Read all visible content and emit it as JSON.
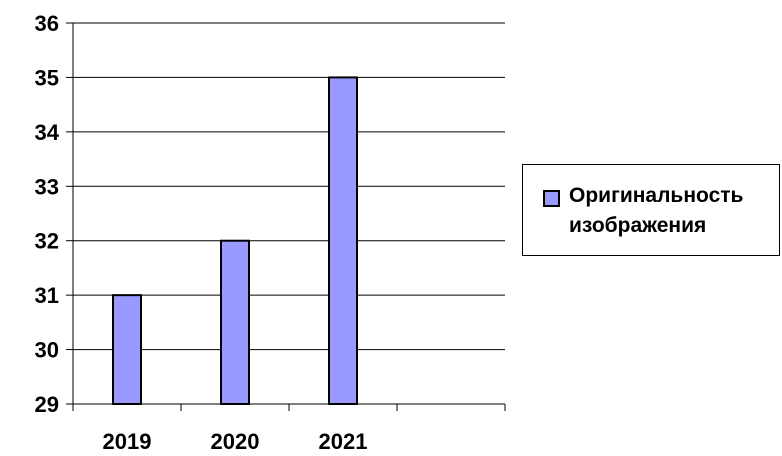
{
  "chart_data": {
    "type": "bar",
    "categories": [
      "2019",
      "2020",
      "2021",
      ""
    ],
    "series": [
      {
        "name": "Оригинальность изображения",
        "values": [
          31,
          32,
          35,
          null
        ],
        "color": "#9999ff"
      }
    ],
    "ylim": [
      29,
      36
    ],
    "yticks": [
      "29",
      "30",
      "31",
      "32",
      "33",
      "34",
      "35",
      "36"
    ],
    "grid": true,
    "legend_position": "right",
    "bar_border_color": "#000000"
  },
  "legend": {
    "label": "Оригинальность изображения"
  }
}
